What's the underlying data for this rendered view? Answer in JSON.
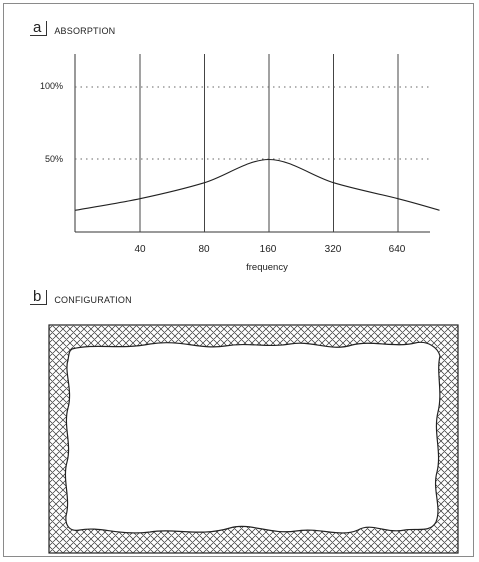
{
  "panel_a": {
    "letter": "a",
    "title": "ABSORPTION"
  },
  "panel_b": {
    "letter": "b",
    "title": "CONFIGURATION"
  },
  "chart_data": {
    "type": "line",
    "title": "ABSORPTION",
    "xlabel": "frequency",
    "ylabel": "",
    "x_categories": [
      "40",
      "80",
      "160",
      "320",
      "640"
    ],
    "y_ticks": [
      "100%",
      "50%"
    ],
    "ylim": [
      0,
      1.25
    ],
    "scale": "log2",
    "grid": {
      "vertical": true,
      "horizontal": "dotted"
    },
    "series": [
      {
        "x": [
          20,
          40,
          80,
          160,
          320,
          640,
          1000
        ],
        "y": [
          0.15,
          0.23,
          0.34,
          0.5,
          0.34,
          0.23,
          0.15
        ]
      }
    ]
  },
  "colors": {
    "line": "#222222",
    "hatch": "#333333",
    "grid": "#555555"
  }
}
